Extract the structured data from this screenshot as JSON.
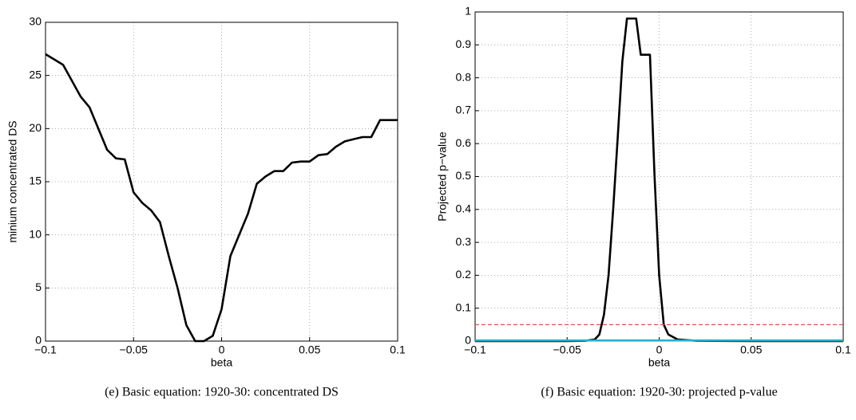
{
  "chart_data": [
    {
      "type": "line",
      "caption": "(e) Basic equation: 1920-30: concentrated DS",
      "xlabel": "beta",
      "ylabel": "minium concentrated DS",
      "xlim": [
        -0.1,
        0.1
      ],
      "ylim": [
        0,
        30
      ],
      "xticks": [
        {
          "value": -0.1,
          "label": "−0.1"
        },
        {
          "value": -0.05,
          "label": "−0.05"
        },
        0,
        0.05,
        0.1
      ],
      "yticks": [
        0,
        5,
        10,
        15,
        20,
        25,
        30
      ],
      "grid": true,
      "x": [
        -0.1,
        -0.095,
        -0.09,
        -0.085,
        -0.08,
        -0.075,
        -0.07,
        -0.065,
        -0.06,
        -0.055,
        -0.05,
        -0.045,
        -0.04,
        -0.035,
        -0.03,
        -0.025,
        -0.02,
        -0.015,
        -0.01,
        -0.005,
        0,
        0.005,
        0.01,
        0.015,
        0.02,
        0.025,
        0.03,
        0.035,
        0.04,
        0.045,
        0.05,
        0.055,
        0.06,
        0.065,
        0.07,
        0.075,
        0.08,
        0.085,
        0.09,
        0.095,
        0.1
      ],
      "series": [
        {
          "color": "#000000",
          "values": [
            27,
            26.5,
            26,
            24.5,
            23,
            22,
            20,
            18,
            17.2,
            17.1,
            14,
            13,
            12.3,
            11.2,
            8,
            5,
            1.5,
            0,
            0,
            0.5,
            3,
            8,
            10,
            12,
            14.8,
            15.5,
            16,
            16,
            16.8,
            16.9,
            16.9,
            17.5,
            17.6,
            18.3,
            18.8,
            19,
            19.2,
            19.2,
            20.8,
            20.8,
            20.8
          ]
        }
      ]
    },
    {
      "type": "line",
      "caption": "(f) Basic equation: 1920-30: projected p-value",
      "xlabel": "beta",
      "ylabel": "Projected p−value",
      "xlim": [
        -0.1,
        0.1
      ],
      "ylim": [
        0,
        1
      ],
      "xticks": [
        {
          "value": -0.1,
          "label": "−0.1"
        },
        {
          "value": -0.05,
          "label": "−0.05"
        },
        0,
        0.05,
        0.1
      ],
      "yticks": [
        0,
        0.1,
        0.2,
        0.3,
        0.4,
        0.5,
        0.6,
        0.7,
        0.8,
        0.9,
        1
      ],
      "grid": true,
      "x": [
        -0.1,
        -0.05,
        -0.04,
        -0.035,
        -0.0325,
        -0.03,
        -0.0275,
        -0.025,
        -0.0225,
        -0.02,
        -0.0175,
        -0.015,
        -0.0125,
        -0.01,
        -0.0075,
        -0.005,
        -0.0025,
        0,
        0.0025,
        0.005,
        0.01,
        0.02,
        0.05,
        0.1
      ],
      "series": [
        {
          "color": "#000000",
          "values": [
            0,
            0,
            0.001,
            0.005,
            0.02,
            0.08,
            0.2,
            0.4,
            0.62,
            0.85,
            0.98,
            0.98,
            0.98,
            0.87,
            0.87,
            0.87,
            0.5,
            0.2,
            0.05,
            0.02,
            0.005,
            0.001,
            0,
            0
          ]
        },
        {
          "color": "#d9544f",
          "dash": "dashed",
          "x": [
            -0.1,
            0.1
          ],
          "values": [
            0.05,
            0.05
          ]
        },
        {
          "color": "#20b2c8",
          "x": [
            -0.1,
            0.1
          ],
          "values": [
            0.002,
            0.002
          ]
        }
      ]
    }
  ]
}
